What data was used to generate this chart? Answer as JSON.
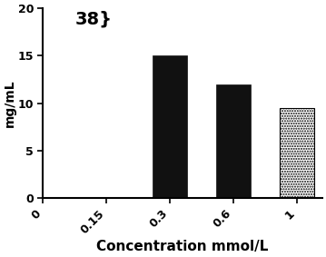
{
  "categories": [
    "0",
    "0.15",
    "0.3",
    "0.6",
    "1"
  ],
  "values": [
    0,
    0,
    15,
    12,
    9.5
  ],
  "solid_color": "#111111",
  "dotted_bar_index": 4,
  "title": "38}",
  "ylabel": "mg/mL",
  "xlabel": "Concentration mmol/L",
  "ylim": [
    0,
    20
  ],
  "yticks": [
    0,
    5,
    10,
    15,
    20
  ],
  "title_fontsize": 14,
  "label_fontsize": 10,
  "tick_fontsize": 9,
  "xlabel_fontsize": 11,
  "bar_width": 0.55
}
